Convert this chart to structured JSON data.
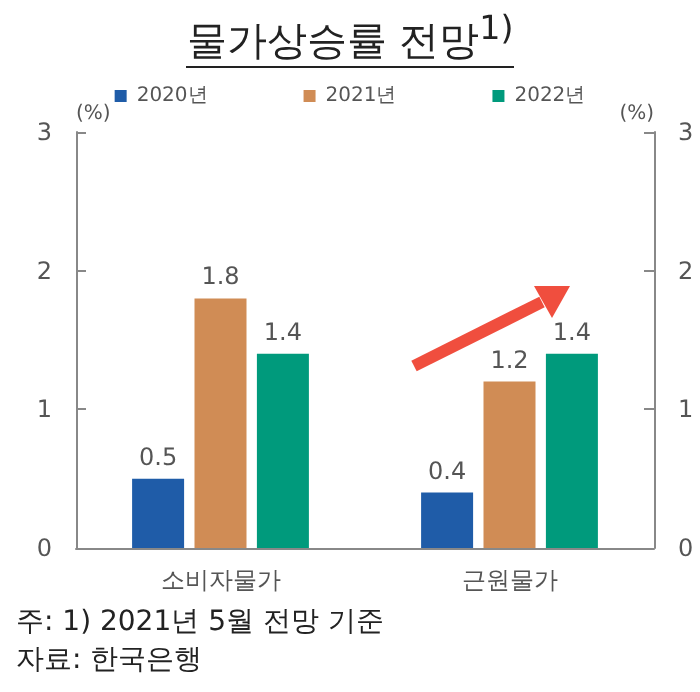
{
  "chart_data": {
    "type": "bar",
    "title": "물가상승률 전망$^{1)}$",
    "categories": [
      "소비자물가",
      "근원물가"
    ],
    "series": [
      {
        "name": "2020년",
        "color": "#1f5ca8",
        "values": [
          0.5,
          0.4
        ]
      },
      {
        "name": "2021년",
        "color": "#d08c55",
        "values": [
          1.8,
          1.2
        ]
      },
      {
        "name": "2022년",
        "color": "#009a7c",
        "values": [
          1.4,
          1.4
        ]
      }
    ],
    "ylabel": "(%)",
    "y2label": "(%)",
    "ylim": [
      0,
      3
    ],
    "yticks": [
      0,
      1,
      2,
      3
    ],
    "y2lim": [
      0,
      3
    ],
    "y2ticks": [
      0,
      1,
      2,
      3
    ],
    "data_labels": true,
    "grid": false,
    "legend": "top",
    "annotations": [
      "주: 1) 2021년 5월 전망 기준",
      "자료: 한국은행"
    ]
  }
}
